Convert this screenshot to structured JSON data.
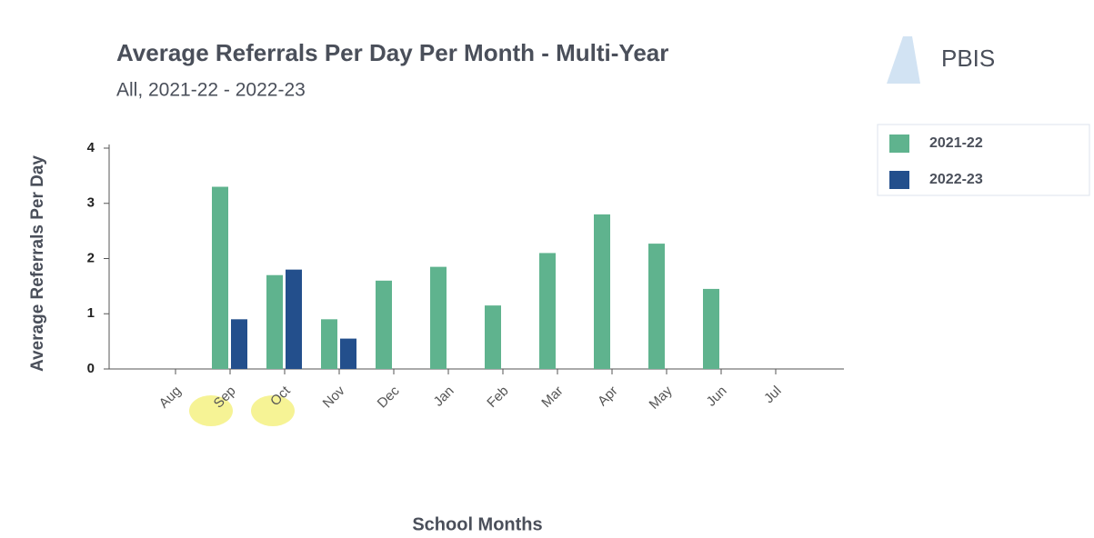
{
  "chart_data": {
    "type": "bar",
    "title": "Average Referrals Per Day Per Month - Multi-Year",
    "subtitle": "All, 2021-22 - 2022-23",
    "logo": "PBIS",
    "y_label": "Average Referrals Per Day",
    "x_label": "School Months",
    "categories": [
      "Aug",
      "Sep",
      "Oct",
      "Nov",
      "Dec",
      "Jan",
      "Feb",
      "Mar",
      "Apr",
      "May",
      "Jun",
      "Jul"
    ],
    "series": [
      {
        "name": "2021-22",
        "color": "#5fb38e",
        "values": [
          null,
          3.3,
          1.7,
          0.9,
          1.6,
          1.85,
          1.15,
          2.1,
          2.8,
          2.27,
          1.45,
          null
        ]
      },
      {
        "name": "2022-23",
        "color": "#234f8c",
        "values": [
          null,
          0.9,
          1.8,
          0.55,
          null,
          null,
          null,
          null,
          null,
          null,
          null,
          null
        ]
      }
    ],
    "ylim": [
      0,
      4
    ],
    "yticks": [
      0,
      1,
      2,
      3,
      4
    ],
    "grid": false,
    "legend": "right"
  }
}
